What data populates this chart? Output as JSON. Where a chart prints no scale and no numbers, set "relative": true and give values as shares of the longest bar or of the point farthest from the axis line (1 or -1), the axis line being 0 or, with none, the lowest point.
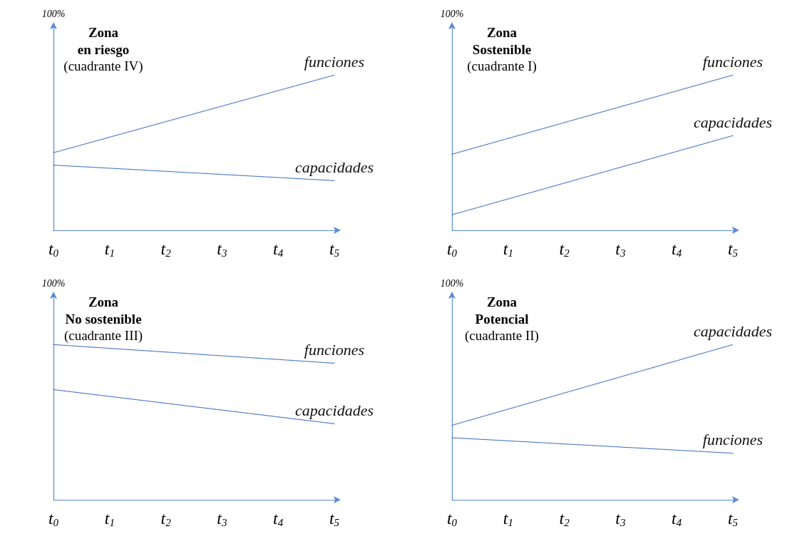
{
  "chart_data": [
    {
      "type": "line",
      "title": "Zona\nen riesgo",
      "subtitle": "(cuadrante IV)",
      "ylabel": "100%",
      "relative": true,
      "marker": "none",
      "line_style": "dotted",
      "categories": [
        "t$_{0}$",
        "t$_{1}$",
        "t$_{2}$",
        "t$_{3}$",
        "t$_{4}$",
        "t$_{5}$"
      ],
      "series": [
        {
          "name": "funciones",
          "color": "#4472c4",
          "values": [
            0.5,
            null,
            null,
            null,
            null,
            1
          ]
        },
        {
          "name": "capacidades",
          "color": "#4472c4",
          "values": [
            0.42,
            null,
            null,
            null,
            null,
            0.32
          ]
        }
      ]
    },
    {
      "type": "line",
      "title": "Zona\nSostenible",
      "subtitle": "(cuadrante I)",
      "ylabel": "100%",
      "relative": true,
      "marker": "none",
      "line_style": "dotted",
      "categories": [
        "t$_{0}$",
        "t$_{1}$",
        "t$_{2}$",
        "t$_{3}$",
        "t$_{4}$",
        "t$_{5}$"
      ],
      "series": [
        {
          "name": "funciones",
          "color": "#4472c4",
          "values": [
            0.49,
            null,
            null,
            null,
            null,
            1
          ]
        },
        {
          "name": "capacidades",
          "color": "#4472c4",
          "values": [
            0.1,
            null,
            null,
            null,
            null,
            0.61
          ]
        }
      ]
    },
    {
      "type": "line",
      "title": "Zona\nNo sostenible",
      "subtitle": "(cuadrante III)",
      "ylabel": "100%",
      "relative": true,
      "marker": "none",
      "line_style": "dotted",
      "categories": [
        "t$_{0}$",
        "t$_{1}$",
        "t$_{2}$",
        "t$_{3}$",
        "t$_{4}$",
        "t$_{5}$"
      ],
      "series": [
        {
          "name": "funciones",
          "color": "#4472c4",
          "values": [
            1,
            null,
            null,
            null,
            null,
            0.88
          ]
        },
        {
          "name": "capacidades",
          "color": "#4472c4",
          "values": [
            0.71,
            null,
            null,
            null,
            null,
            0.49
          ]
        }
      ]
    },
    {
      "type": "line",
      "title": "Zona\nPotencial",
      "subtitle": "(cuadrante II)",
      "ylabel": "100%",
      "relative": true,
      "marker": "none",
      "line_style": "dotted",
      "categories": [
        "t$_{0}$",
        "t$_{1}$",
        "t$_{2}$",
        "t$_{3}$",
        "t$_{4}$",
        "t$_{5}$"
      ],
      "series": [
        {
          "name": "capacidades",
          "color": "#4472c4",
          "values": [
            0.48,
            null,
            null,
            null,
            null,
            1
          ]
        },
        {
          "name": "funciones",
          "color": "#4472c4",
          "values": [
            0.4,
            null,
            null,
            null,
            null,
            0.3
          ]
        }
      ]
    }
  ]
}
